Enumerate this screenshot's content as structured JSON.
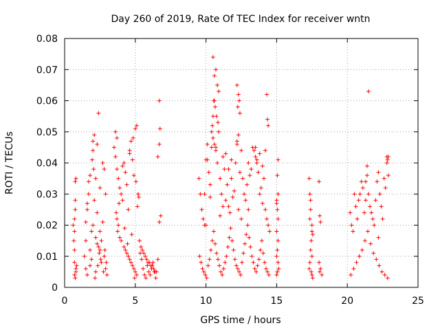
{
  "chart_data": {
    "type": "scatter",
    "title": "Day 260 of 2019, Rate Of TEC Index for receiver wntn",
    "xlabel": "GPS time / hours",
    "ylabel": "ROTI / TECUs",
    "xlim": [
      0,
      25
    ],
    "ylim": [
      0,
      0.08
    ],
    "xticks": [
      0,
      5,
      10,
      15,
      20,
      25
    ],
    "xtick_labels": [
      "0",
      "5",
      "10",
      "15",
      "20",
      "25"
    ],
    "yticks": [
      0,
      0.01,
      0.02,
      0.03,
      0.04,
      0.05,
      0.06,
      0.07,
      0.08
    ],
    "ytick_labels": [
      "0",
      "0.01",
      "0.02",
      "0.03",
      "0.04",
      "0.05",
      "0.06",
      "0.07",
      "0.08"
    ],
    "grid": true,
    "marker": "plus",
    "color": "#ff0000",
    "series": [
      {
        "name": "ROTI",
        "x": [
          0.6,
          0.65,
          0.7,
          0.7,
          0.75,
          0.8,
          0.75,
          0.7,
          0.8,
          0.75,
          0.7,
          0.8,
          0.85,
          0.7,
          0.75,
          1.4,
          1.5,
          1.5,
          1.6,
          1.7,
          1.5,
          1.6,
          1.8,
          1.9,
          1.6,
          1.7,
          1.8,
          2.0,
          2.1,
          2.0,
          1.95,
          2.05,
          2.2,
          2.1,
          2.3,
          2.4,
          2.3,
          2.5,
          2.5,
          2.6,
          2.7,
          2.8,
          2.9,
          2.7,
          2.8,
          2.9,
          3.0,
          2.6,
          2.5,
          2.4,
          2.2,
          2.0,
          1.9,
          1.8,
          2.3,
          2.2,
          2.15,
          2.45,
          2.35,
          2.55,
          2.75,
          2.85,
          2.95,
          3.5,
          3.6,
          3.7,
          3.6,
          3.7,
          3.8,
          3.9,
          4.0,
          4.1,
          4.2,
          4.3,
          4.4,
          4.5,
          4.6,
          4.7,
          4.8,
          4.9,
          5.0,
          5.1,
          5.2,
          3.7,
          3.75,
          4.0,
          4.3,
          4.5,
          4.7,
          4.9,
          5.0,
          5.1,
          4.95,
          4.8,
          4.6,
          4.4,
          4.2,
          3.9,
          3.8,
          5.3,
          5.5,
          5.7,
          5.9,
          6.1,
          6.3,
          6.5,
          6.6,
          6.7,
          6.75,
          6.7,
          6.6,
          6.8,
          6.7,
          5.4,
          5.6,
          5.8,
          6.0,
          6.2,
          6.4,
          4.1,
          4.6,
          4.85,
          5.05,
          3.65,
          3.85,
          4.25,
          4.45,
          4.75,
          5.15,
          5.25,
          5.35,
          5.45,
          5.55,
          5.65,
          5.75,
          5.85,
          5.95,
          6.05,
          6.15,
          6.25,
          6.35,
          6.45,
          9.5,
          9.6,
          9.7,
          9.8,
          9.9,
          10.0,
          10.1,
          10.2,
          10.3,
          10.4,
          10.5,
          10.6,
          10.7,
          10.8,
          10.9,
          11.0,
          11.1,
          11.2,
          11.3,
          11.4,
          11.5,
          11.6,
          11.7,
          11.8,
          11.9,
          12.0,
          12.1,
          12.2,
          12.3,
          12.4,
          12.5,
          12.6,
          12.7,
          12.8,
          12.9,
          13.0,
          13.1,
          13.2,
          13.3,
          13.4,
          13.5,
          13.6,
          13.7,
          13.8,
          13.9,
          14.0,
          14.1,
          14.2,
          14.3,
          14.4,
          14.5,
          9.55,
          9.65,
          9.75,
          9.85,
          9.95,
          10.05,
          10.15,
          10.25,
          10.35,
          10.45,
          10.55,
          10.65,
          10.75,
          10.85,
          10.95,
          11.05,
          11.15,
          11.25,
          11.35,
          11.45,
          11.55,
          11.65,
          11.75,
          11.85,
          11.95,
          12.05,
          12.15,
          12.25,
          12.35,
          12.45,
          12.55,
          12.65,
          12.75,
          12.85,
          12.95,
          13.05,
          13.15,
          13.25,
          13.35,
          13.45,
          13.55,
          13.65,
          13.75,
          13.85,
          13.95,
          14.05,
          14.15,
          14.25,
          14.35,
          14.45,
          10.5,
          10.6,
          10.7,
          10.8,
          10.9,
          10.55,
          10.65,
          10.75,
          10.85,
          10.45,
          10.4,
          10.5,
          10.6,
          10.7,
          12.2,
          12.3,
          12.35,
          12.25,
          12.4,
          12.3,
          12.2,
          14.3,
          14.35,
          14.4,
          10.0,
          10.1,
          11.4,
          11.6,
          11.8,
          12.5,
          13.0,
          13.5,
          13.8,
          13.6,
          14.0,
          14.2,
          11.0,
          11.2,
          9.9,
          10.3,
          15.0,
          15.05,
          15.1,
          15.0,
          15.1,
          15.05,
          15.0,
          15.1,
          15.15,
          15.05,
          15.0,
          15.1,
          15.05,
          15.1,
          15.0,
          17.3,
          17.35,
          17.4,
          17.5,
          17.55,
          17.45,
          17.4,
          17.5,
          17.35,
          17.3,
          17.45,
          17.5,
          17.55,
          17.4,
          17.35,
          17.5,
          18.0,
          18.05,
          18.1,
          18.0,
          18.1,
          18.05,
          18.2,
          20.2,
          20.3,
          20.4,
          20.5,
          20.6,
          20.7,
          20.8,
          20.9,
          21.0,
          21.1,
          21.2,
          21.3,
          21.4,
          21.5,
          21.6,
          21.7,
          21.8,
          21.9,
          22.0,
          22.1,
          22.2,
          22.3,
          22.4,
          22.5,
          22.6,
          22.7,
          22.8,
          22.9,
          20.25,
          20.45,
          20.65,
          20.85,
          21.05,
          21.25,
          21.45,
          21.65,
          21.85,
          22.05,
          22.25,
          22.45,
          22.65,
          22.85,
          21.5,
          22.8,
          22.85,
          22.9,
          22.2,
          21.4,
          21.3
        ],
        "y": [
          0.02,
          0.015,
          0.012,
          0.018,
          0.034,
          0.035,
          0.028,
          0.008,
          0.005,
          0.003,
          0.004,
          0.006,
          0.007,
          0.022,
          0.025,
          0.01,
          0.015,
          0.021,
          0.025,
          0.03,
          0.006,
          0.004,
          0.012,
          0.018,
          0.027,
          0.034,
          0.036,
          0.047,
          0.049,
          0.044,
          0.041,
          0.038,
          0.035,
          0.028,
          0.024,
          0.056,
          0.046,
          0.032,
          0.018,
          0.015,
          0.04,
          0.038,
          0.03,
          0.021,
          0.01,
          0.006,
          0.004,
          0.008,
          0.012,
          0.013,
          0.016,
          0.02,
          0.009,
          0.007,
          0.014,
          0.005,
          0.003,
          0.011,
          0.007,
          0.009,
          0.005,
          0.012,
          0.008,
          0.045,
          0.05,
          0.048,
          0.042,
          0.038,
          0.035,
          0.032,
          0.03,
          0.028,
          0.04,
          0.037,
          0.033,
          0.025,
          0.044,
          0.047,
          0.041,
          0.036,
          0.051,
          0.052,
          0.03,
          0.022,
          0.018,
          0.015,
          0.012,
          0.01,
          0.008,
          0.006,
          0.005,
          0.004,
          0.003,
          0.007,
          0.009,
          0.011,
          0.013,
          0.016,
          0.02,
          0.015,
          0.012,
          0.01,
          0.008,
          0.007,
          0.006,
          0.005,
          0.009,
          0.06,
          0.051,
          0.046,
          0.042,
          0.023,
          0.021,
          0.013,
          0.011,
          0.009,
          0.008,
          0.007,
          0.005,
          0.039,
          0.043,
          0.048,
          0.034,
          0.024,
          0.027,
          0.019,
          0.014,
          0.017,
          0.026,
          0.029,
          0.011,
          0.009,
          0.006,
          0.004,
          0.003,
          0.007,
          0.005,
          0.004,
          0.006,
          0.008,
          0.005,
          0.003,
          0.035,
          0.03,
          0.025,
          0.022,
          0.03,
          0.02,
          0.041,
          0.037,
          0.033,
          0.045,
          0.055,
          0.06,
          0.045,
          0.04,
          0.05,
          0.035,
          0.03,
          0.042,
          0.038,
          0.028,
          0.033,
          0.026,
          0.024,
          0.035,
          0.029,
          0.031,
          0.04,
          0.047,
          0.025,
          0.037,
          0.022,
          0.035,
          0.03,
          0.028,
          0.033,
          0.025,
          0.036,
          0.038,
          0.045,
          0.044,
          0.042,
          0.04,
          0.037,
          0.03,
          0.032,
          0.027,
          0.035,
          0.025,
          0.022,
          0.02,
          0.018,
          0.01,
          0.008,
          0.006,
          0.005,
          0.004,
          0.003,
          0.007,
          0.009,
          0.012,
          0.015,
          0.018,
          0.014,
          0.011,
          0.009,
          0.007,
          0.005,
          0.004,
          0.006,
          0.008,
          0.01,
          0.013,
          0.016,
          0.019,
          0.015,
          0.012,
          0.009,
          0.007,
          0.006,
          0.005,
          0.004,
          0.008,
          0.011,
          0.014,
          0.017,
          0.02,
          0.016,
          0.013,
          0.01,
          0.008,
          0.006,
          0.005,
          0.007,
          0.009,
          0.012,
          0.015,
          0.011,
          0.008,
          0.006,
          0.005,
          0.004,
          0.074,
          0.068,
          0.07,
          0.065,
          0.063,
          0.06,
          0.058,
          0.055,
          0.053,
          0.052,
          0.05,
          0.048,
          0.046,
          0.044,
          0.065,
          0.062,
          0.06,
          0.058,
          0.056,
          0.049,
          0.046,
          0.062,
          0.054,
          0.052,
          0.041,
          0.046,
          0.043,
          0.038,
          0.041,
          0.044,
          0.04,
          0.045,
          0.043,
          0.041,
          0.039,
          0.044,
          0.023,
          0.026,
          0.02,
          0.029,
          0.028,
          0.025,
          0.022,
          0.018,
          0.015,
          0.012,
          0.01,
          0.008,
          0.006,
          0.005,
          0.004,
          0.041,
          0.036,
          0.03,
          0.027,
          0.035,
          0.03,
          0.025,
          0.02,
          0.017,
          0.015,
          0.012,
          0.01,
          0.008,
          0.006,
          0.005,
          0.004,
          0.003,
          0.028,
          0.022,
          0.018,
          0.034,
          0.023,
          0.021,
          0.008,
          0.006,
          0.005,
          0.004,
          0.024,
          0.02,
          0.018,
          0.03,
          0.026,
          0.022,
          0.028,
          0.03,
          0.034,
          0.032,
          0.024,
          0.028,
          0.036,
          0.03,
          0.026,
          0.024,
          0.022,
          0.02,
          0.028,
          0.034,
          0.037,
          0.03,
          0.026,
          0.022,
          0.035,
          0.032,
          0.04,
          0.042,
          0.004,
          0.006,
          0.008,
          0.01,
          0.012,
          0.015,
          0.018,
          0.014,
          0.011,
          0.009,
          0.007,
          0.005,
          0.004,
          0.003,
          0.063,
          0.042,
          0.041,
          0.036,
          0.016,
          0.039,
          0.034
        ]
      }
    ]
  }
}
